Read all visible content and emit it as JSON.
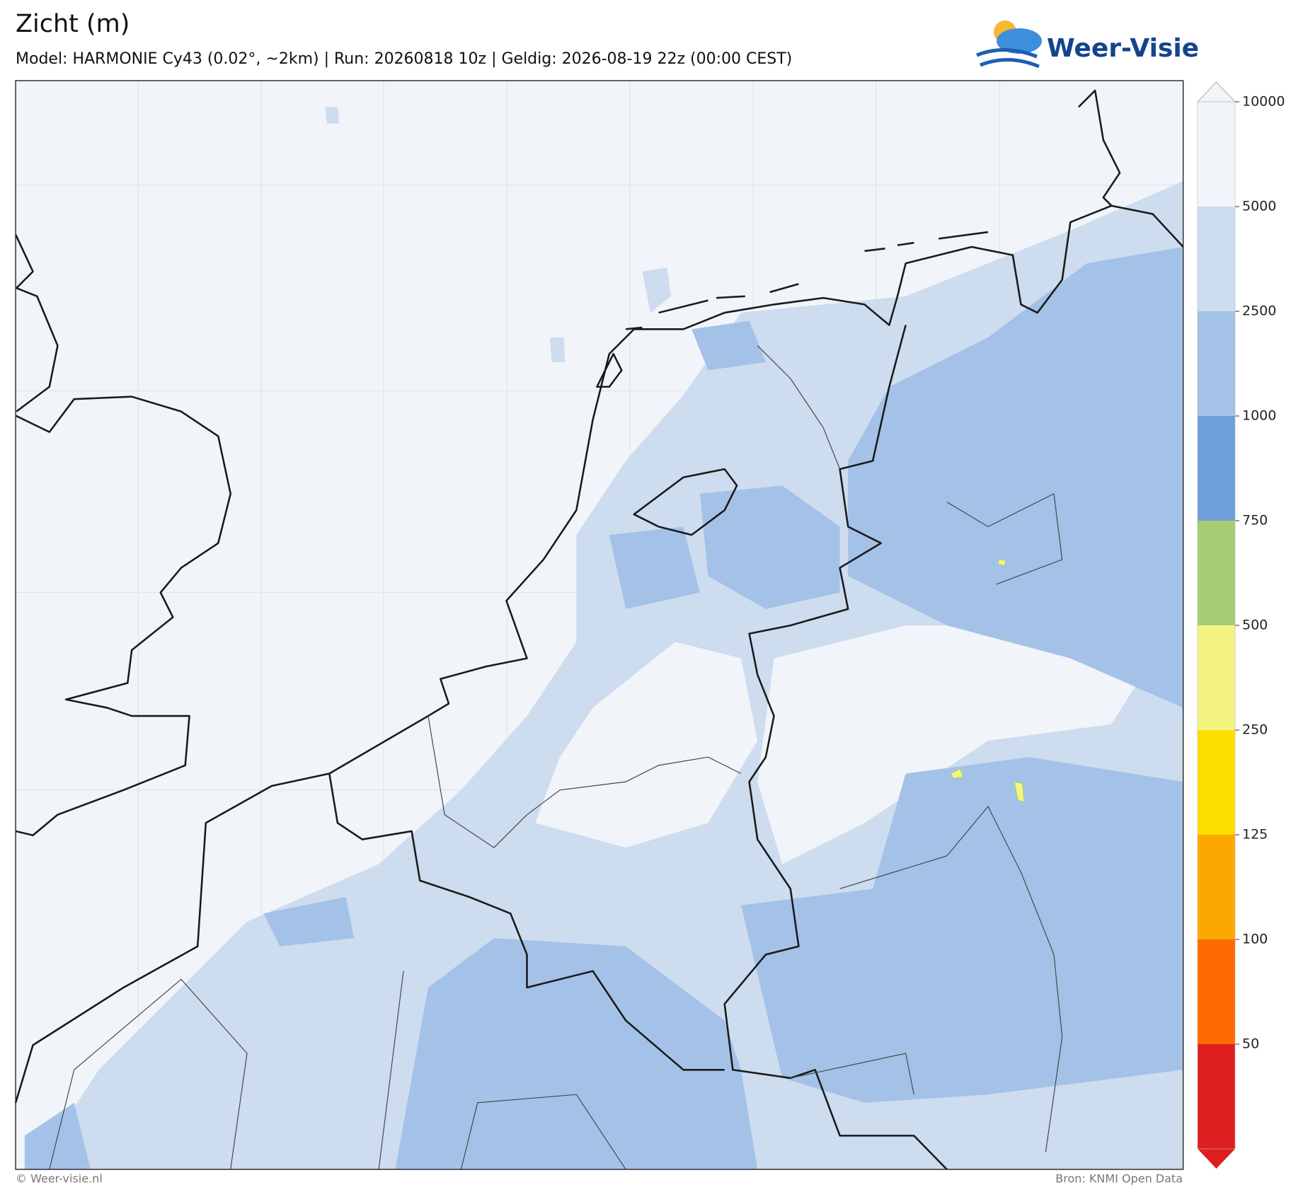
{
  "header": {
    "title": "Zicht (m)",
    "subtitle": "Model: HARMONIE Cy43 (0.02°, ~2km)  |  Run: 20260818 10z  |  Geldig: 2026-08-19 22z (00:00 CEST)",
    "logo": "Weer-Visie"
  },
  "colorbar": {
    "ticks": [
      10000,
      5000,
      2500,
      1000,
      750,
      500,
      250,
      125,
      100,
      50
    ],
    "colors": [
      "#f1f4f9",
      "#cddcef",
      "#a4c2e8",
      "#6e9fd9",
      "#a6cd74",
      "#f4f483",
      "#fde000",
      "#fda800",
      "#fd6a00",
      "#dd1f1f"
    ]
  },
  "footer": {
    "left": "© Weer-visie.nl",
    "right": "Bron: KNMI Open Data"
  }
}
